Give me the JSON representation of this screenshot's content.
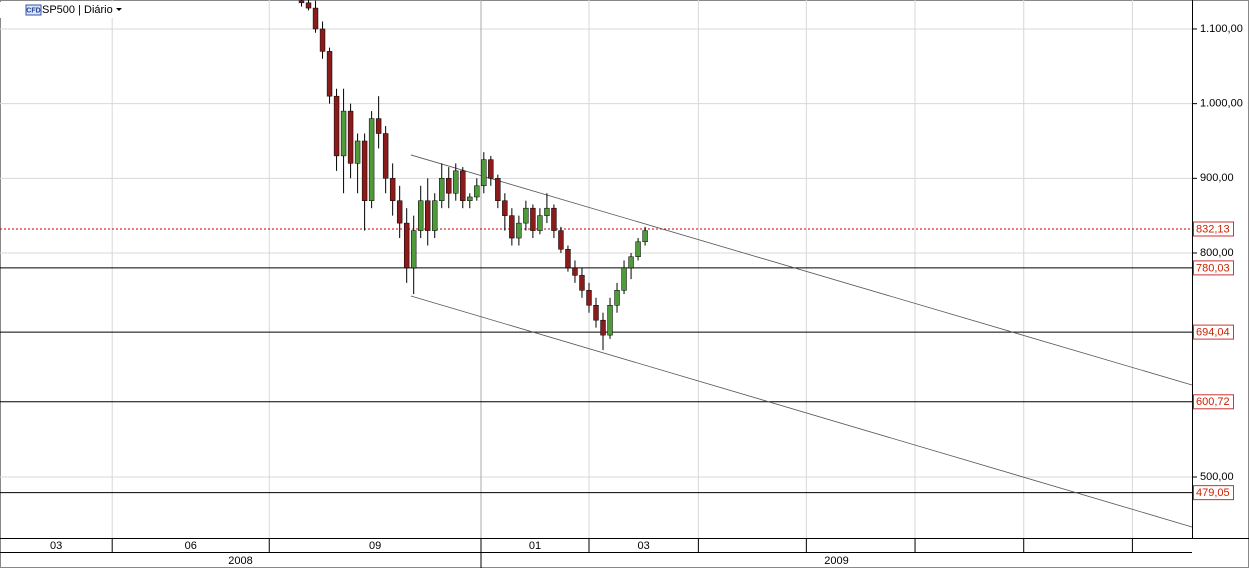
{
  "chart_data": {
    "type": "candlestick",
    "title": "SP500 | Diário",
    "symbol_badge": "CFD",
    "ylim": [
      418.3,
      1138.8
    ],
    "xlim": [
      0,
      170
    ],
    "yticks": [
      {
        "value": 1100,
        "label": "1.100,00"
      },
      {
        "value": 1000,
        "label": "1.000,00"
      },
      {
        "value": 900,
        "label": "900,00"
      },
      {
        "value": 800,
        "label": "800,00"
      },
      {
        "value": 500,
        "label": "500,00"
      }
    ],
    "grid": true,
    "up_color": "#4f9a3a",
    "down_color": "#8b1a1a",
    "x_periods": [
      {
        "label": "03",
        "start": 0,
        "end": 16
      },
      {
        "label": "06",
        "start": 16,
        "end": 38.4
      },
      {
        "label": "09",
        "start": 38.4,
        "end": 68.6
      },
      {
        "label": "01",
        "start": 68.6,
        "end": 84
      },
      {
        "label": "03",
        "start": 84,
        "end": 99.6
      },
      {
        "label": null,
        "start": 99.6,
        "end": 115
      },
      {
        "label": null,
        "start": 115,
        "end": 130.5
      },
      {
        "label": null,
        "start": 130.5,
        "end": 146
      },
      {
        "label": null,
        "start": 146,
        "end": 161.5
      },
      {
        "label": null,
        "start": 161.5,
        "end": 170
      }
    ],
    "years": [
      {
        "label": "2008",
        "start": 0,
        "end": 68.6
      },
      {
        "label": "2009",
        "start": 68.6,
        "end": 170
      }
    ],
    "x": [
      43,
      44,
      45,
      46,
      47,
      48,
      49,
      50,
      51,
      52,
      53,
      54,
      55,
      56,
      57,
      58,
      59,
      60,
      61,
      62,
      63,
      64,
      65,
      66,
      67,
      68,
      69,
      70,
      71,
      72,
      73,
      74,
      75,
      76,
      77,
      78,
      79,
      80,
      81,
      82,
      83,
      84,
      85,
      86,
      87,
      88,
      89,
      90,
      91,
      92
    ],
    "open": [
      1138,
      1135,
      1128,
      1100,
      1070,
      1010,
      930,
      990,
      920,
      950,
      870,
      980,
      960,
      900,
      870,
      840,
      780,
      830,
      870,
      830,
      870,
      900,
      880,
      910,
      870,
      875,
      890,
      925,
      900,
      870,
      850,
      820,
      840,
      860,
      830,
      850,
      860,
      830,
      805,
      780,
      770,
      750,
      730,
      710,
      690,
      730,
      750,
      780,
      795,
      815
    ],
    "high": [
      1145,
      1140,
      1138,
      1110,
      1075,
      1020,
      1020,
      1000,
      960,
      960,
      990,
      1010,
      970,
      920,
      890,
      860,
      850,
      890,
      900,
      880,
      920,
      915,
      920,
      915,
      880,
      900,
      935,
      930,
      905,
      880,
      860,
      850,
      870,
      865,
      860,
      880,
      865,
      835,
      810,
      790,
      780,
      760,
      740,
      720,
      740,
      760,
      790,
      800,
      820,
      835
    ],
    "low": [
      1130,
      1125,
      1095,
      1060,
      1000,
      910,
      880,
      900,
      880,
      830,
      860,
      940,
      880,
      850,
      820,
      760,
      745,
      820,
      810,
      820,
      860,
      860,
      870,
      860,
      860,
      870,
      880,
      890,
      860,
      830,
      810,
      810,
      830,
      820,
      825,
      840,
      820,
      800,
      775,
      760,
      740,
      720,
      700,
      670,
      685,
      720,
      745,
      765,
      790,
      810
    ],
    "close": [
      1135,
      1128,
      1100,
      1070,
      1010,
      930,
      990,
      920,
      950,
      870,
      980,
      960,
      900,
      870,
      840,
      780,
      830,
      870,
      830,
      870,
      900,
      880,
      910,
      870,
      875,
      890,
      925,
      900,
      870,
      850,
      820,
      840,
      860,
      830,
      850,
      860,
      830,
      805,
      780,
      770,
      750,
      730,
      710,
      690,
      730,
      750,
      780,
      795,
      815,
      830
    ],
    "levels": [
      {
        "value": 832.13,
        "label": "832,13",
        "color": "#cc0000",
        "style": "dotted"
      },
      {
        "value": 780.03,
        "label": "780,03",
        "color": "#000000",
        "style": "solid"
      },
      {
        "value": 694.04,
        "label": "694,04",
        "color": "#000000",
        "style": "solid"
      },
      {
        "value": 600.72,
        "label": "600,72",
        "color": "#000000",
        "style": "solid"
      },
      {
        "value": 479.05,
        "label": "479,05",
        "color": "#000000",
        "style": "solid"
      }
    ],
    "trendlines": [
      {
        "x": [
          58.6,
          170
        ],
        "y": [
          931.3,
          623.2
        ]
      },
      {
        "x": [
          58.6,
          170
        ],
        "y": [
          742.4,
          433.1
        ]
      }
    ]
  }
}
